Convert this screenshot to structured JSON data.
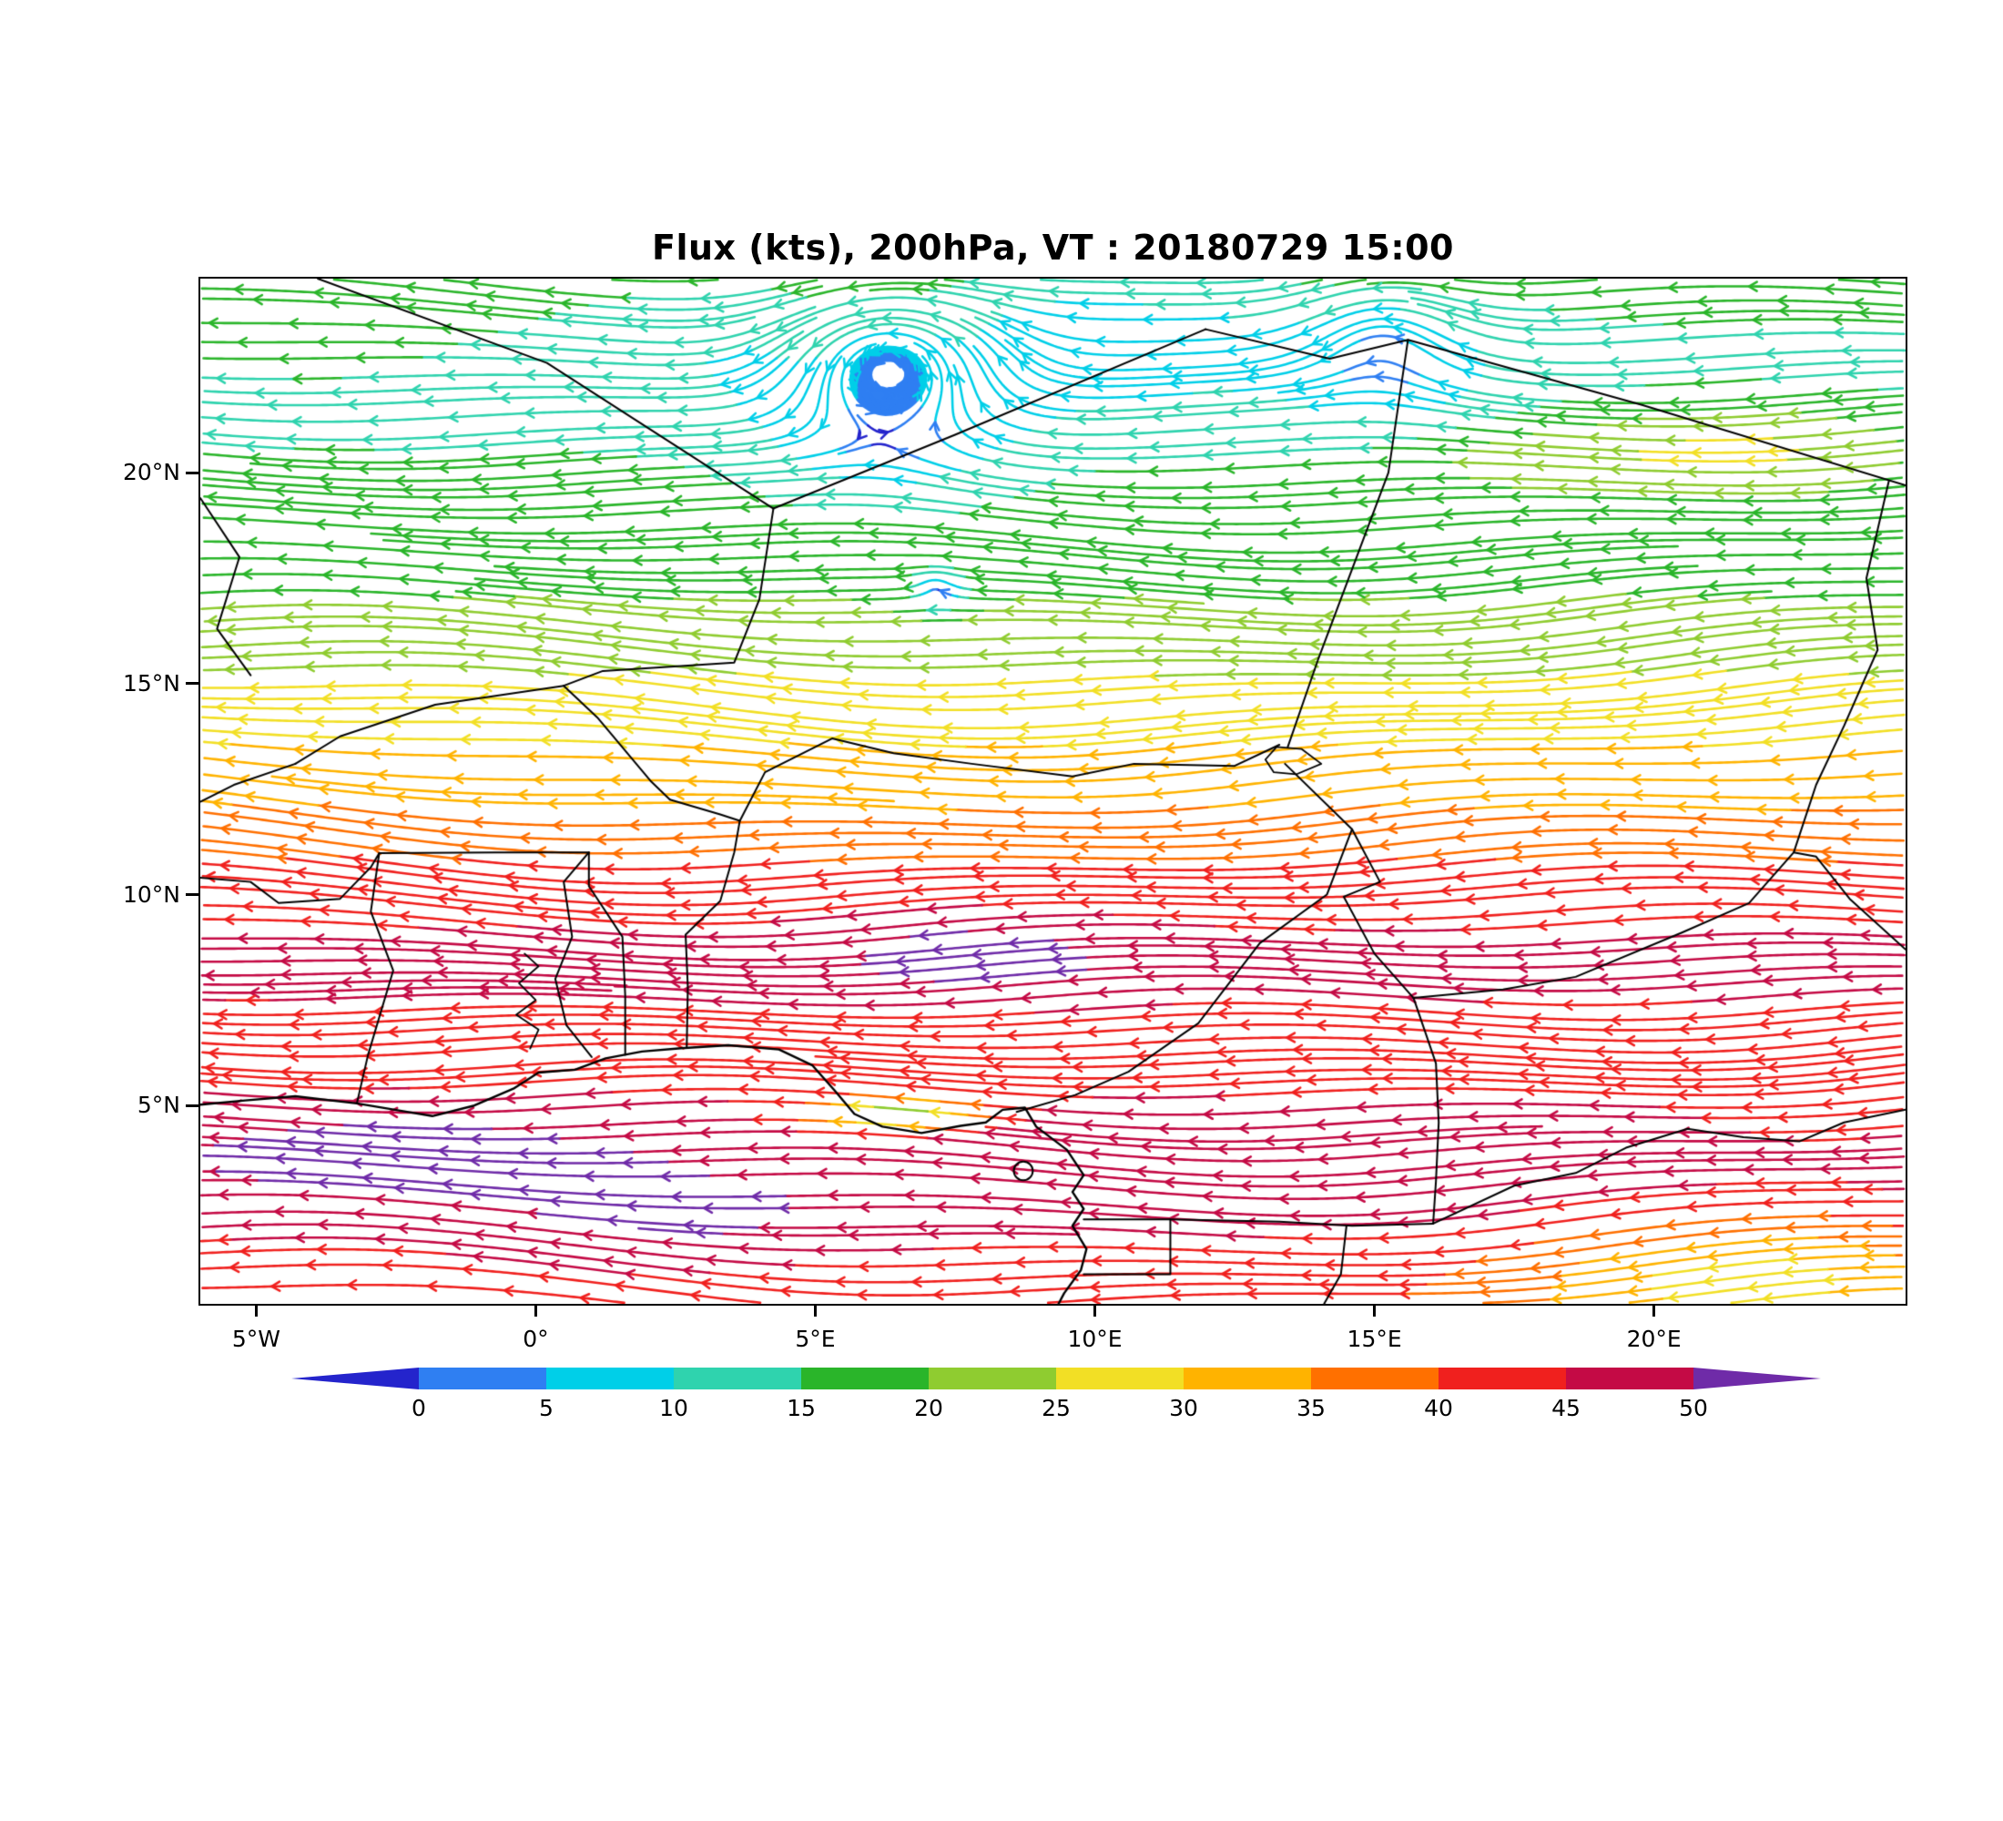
{
  "title": "Flux (kts), 200hPa, VT : 20180729  15:00",
  "axes": {
    "x": {
      "ticks": [
        {
          "lon": -5,
          "label": "5°W"
        },
        {
          "lon": 0,
          "label": "0°"
        },
        {
          "lon": 5,
          "label": "5°E"
        },
        {
          "lon": 10,
          "label": "10°E"
        },
        {
          "lon": 15,
          "label": "15°E"
        },
        {
          "lon": 20,
          "label": "20°E"
        }
      ]
    },
    "y": {
      "ticks": [
        {
          "lat": 20,
          "label": "20°N"
        },
        {
          "lat": 15,
          "label": "15°N"
        },
        {
          "lat": 10,
          "label": "10°N"
        },
        {
          "lat": 5,
          "label": "5°N"
        }
      ]
    }
  },
  "chart_data": {
    "type": "streamline-map",
    "title": "Flux (kts), 200hPa, VT : 20180729  15:00",
    "variable": "Wind flux (kts) at 200 hPa",
    "valid_time": "20180729 15:00",
    "domain": {
      "lon_min": -6.0,
      "lon_max": 24.5,
      "lat_min": 0.3,
      "lat_max": 24.6
    },
    "colorbar": {
      "levels": [
        0,
        5,
        10,
        15,
        20,
        25,
        30,
        35,
        40,
        45,
        50
      ],
      "labels": [
        "0",
        "5",
        "10",
        "15",
        "20",
        "25",
        "30",
        "35",
        "40",
        "45",
        "50"
      ],
      "colors": [
        "#2424cc",
        "#2f7ff2",
        "#00cfe8",
        "#2fd3ae",
        "#2ab52a",
        "#8fcc30",
        "#f2df25",
        "#ffb300",
        "#ff7000",
        "#f0201e",
        "#c40a45",
        "#6f2ba8"
      ],
      "units": "kts"
    },
    "flow": {
      "direction": "easterly (streamlines and arrowheads point westward across the whole domain)",
      "speed_profile_by_latitude": [
        [
          24.6,
          17
        ],
        [
          23.5,
          15
        ],
        [
          22.5,
          13
        ],
        [
          21.5,
          13.5
        ],
        [
          20.5,
          15
        ],
        [
          19.5,
          16
        ],
        [
          18,
          18
        ],
        [
          16.5,
          21
        ],
        [
          15.5,
          24
        ],
        [
          14.5,
          27
        ],
        [
          13.5,
          30
        ],
        [
          12.5,
          33
        ],
        [
          11.5,
          37
        ],
        [
          10.5,
          41
        ],
        [
          9.5,
          44
        ],
        [
          8.8,
          46
        ],
        [
          8.2,
          47
        ],
        [
          7.5,
          45
        ],
        [
          6.8,
          43
        ],
        [
          6,
          43
        ],
        [
          5.2,
          45
        ],
        [
          4.5,
          47
        ],
        [
          3.8,
          49
        ],
        [
          3,
          48
        ],
        [
          2.2,
          46
        ],
        [
          1.2,
          43
        ],
        [
          0.3,
          41
        ]
      ],
      "speed_anomalies": [
        {
          "lon": 8.5,
          "lat": 23.2,
          "sx": 5.5,
          "sy": 1.6,
          "amp": -9
        },
        {
          "lon": -4.0,
          "lat": 23.5,
          "sx": 2.5,
          "sy": 1.5,
          "amp": 4
        },
        {
          "lon": 21.5,
          "lat": 20.6,
          "sx": 3.2,
          "sy": 1.2,
          "amp": 11
        },
        {
          "lon": 17.5,
          "lat": 20.3,
          "sx": 2.2,
          "sy": 0.8,
          "amp": 6
        },
        {
          "lon": 7.8,
          "lat": 8.6,
          "sx": 2.6,
          "sy": 1.0,
          "amp": 6
        },
        {
          "lon": -2.5,
          "lat": 3.9,
          "sx": 3.2,
          "sy": 1.0,
          "amp": 5
        },
        {
          "lon": 2.5,
          "lat": 2.1,
          "sx": 3.5,
          "sy": 1.1,
          "amp": 5
        },
        {
          "lon": 21.5,
          "lat": 1.0,
          "sx": 4.0,
          "sy": 1.6,
          "amp": -15
        },
        {
          "lon": 23.0,
          "lat": 4.5,
          "sx": 2.5,
          "sy": 1.5,
          "amp": -3
        },
        {
          "lon": 6.3,
          "lat": 4.8,
          "sx": 1.5,
          "sy": 0.4,
          "amp": -26
        }
      ],
      "vortices": [
        {
          "lon": 6.3,
          "lat": 22.5,
          "radius": 2.0,
          "strength": 10,
          "damp": 0.8
        },
        {
          "lon": 15.2,
          "lat": 23.6,
          "radius": 1.7,
          "strength": 7,
          "damp": 0.45
        },
        {
          "lon": 7.15,
          "lat": 17.35,
          "radius": 0.5,
          "strength": 18,
          "damp": 0.85
        }
      ]
    },
    "basemap": {
      "coastline": [
        [
          -6,
          5.02
        ],
        [
          -5.2,
          5.12
        ],
        [
          -4.3,
          5.22
        ],
        [
          -3.2,
          5.05
        ],
        [
          -2.3,
          4.85
        ],
        [
          -1.85,
          4.75
        ],
        [
          -1.1,
          5.0
        ],
        [
          -0.4,
          5.4
        ],
        [
          0.05,
          5.78
        ],
        [
          0.7,
          5.85
        ],
        [
          1.25,
          6.12
        ],
        [
          1.9,
          6.28
        ],
        [
          2.6,
          6.36
        ],
        [
          3.45,
          6.43
        ],
        [
          4.35,
          6.33
        ],
        [
          4.95,
          5.95
        ],
        [
          5.35,
          5.35
        ],
        [
          5.7,
          4.8
        ],
        [
          6.2,
          4.5
        ],
        [
          6.9,
          4.35
        ],
        [
          7.6,
          4.52
        ],
        [
          8.05,
          4.6
        ],
        [
          8.35,
          4.9
        ],
        [
          8.75,
          4.95
        ],
        [
          8.95,
          4.5
        ],
        [
          9.5,
          3.95
        ],
        [
          9.8,
          3.35
        ],
        [
          9.6,
          2.95
        ],
        [
          9.8,
          2.55
        ],
        [
          9.6,
          2.15
        ],
        [
          9.85,
          1.6
        ],
        [
          9.75,
          1.1
        ],
        [
          9.45,
          0.55
        ],
        [
          9.35,
          0.3
        ]
      ],
      "borders": [
        [
          [
            -3.9,
            24.6
          ],
          [
            0.2,
            22.6
          ],
          [
            4.25,
            19.15
          ]
        ],
        [
          [
            4.25,
            19.15
          ],
          [
            7.5,
            20.9
          ],
          [
            11.98,
            23.4
          ]
        ],
        [
          [
            11.98,
            23.4
          ],
          [
            14.2,
            22.7
          ],
          [
            15.6,
            23.15
          ],
          [
            19.8,
            21.6
          ],
          [
            24.5,
            19.7
          ]
        ],
        [
          [
            24.2,
            19.8
          ],
          [
            23.8,
            17.5
          ],
          [
            24.0,
            15.8
          ],
          [
            23.4,
            14.0
          ],
          [
            22.9,
            12.6
          ],
          [
            22.5,
            11.0
          ],
          [
            22.9,
            10.9
          ],
          [
            23.5,
            9.9
          ],
          [
            24.5,
            8.7
          ]
        ],
        [
          [
            4.25,
            19.15
          ],
          [
            4.0,
            17.0
          ],
          [
            3.55,
            15.5
          ],
          [
            1.2,
            15.3
          ],
          [
            0.5,
            14.95
          ]
        ],
        [
          [
            0.5,
            14.95
          ],
          [
            1.1,
            14.2
          ],
          [
            2.05,
            12.7
          ],
          [
            2.4,
            12.25
          ]
        ],
        [
          [
            2.4,
            12.25
          ],
          [
            3.3,
            11.9
          ],
          [
            3.65,
            11.75
          ]
        ],
        [
          [
            -4.3,
            13.1
          ],
          [
            -3.5,
            13.75
          ],
          [
            -1.8,
            14.5
          ],
          [
            0.5,
            14.95
          ]
        ],
        [
          [
            -6,
            12.2
          ],
          [
            -5.4,
            12.6
          ],
          [
            -4.3,
            13.1
          ]
        ],
        [
          [
            -6,
            10.4
          ],
          [
            -5.1,
            10.3
          ],
          [
            -4.6,
            9.8
          ],
          [
            -3.5,
            9.9
          ],
          [
            -2.95,
            10.65
          ],
          [
            -2.8,
            10.98
          ]
        ],
        [
          [
            -2.8,
            10.98
          ],
          [
            -0.7,
            11.0
          ],
          [
            0.95,
            11.0
          ]
        ],
        [
          [
            -3.2,
            5.05
          ],
          [
            -3.0,
            6.2
          ],
          [
            -2.55,
            8.2
          ],
          [
            -2.95,
            9.6
          ],
          [
            -2.8,
            10.98
          ]
        ],
        [
          [
            0.95,
            11.0
          ],
          [
            0.5,
            10.3
          ],
          [
            0.65,
            9.0
          ],
          [
            0.35,
            8.0
          ],
          [
            0.55,
            6.9
          ],
          [
            1.0,
            6.15
          ]
        ],
        [
          [
            1.6,
            6.2
          ],
          [
            1.6,
            7.6
          ],
          [
            1.55,
            9.0
          ],
          [
            0.95,
            10.2
          ],
          [
            0.95,
            11.0
          ]
        ],
        [
          [
            2.7,
            6.37
          ],
          [
            2.72,
            7.8
          ],
          [
            2.68,
            9.05
          ],
          [
            3.3,
            9.85
          ],
          [
            3.55,
            11.0
          ],
          [
            3.65,
            11.75
          ]
        ],
        [
          [
            3.65,
            11.75
          ],
          [
            4.1,
            12.9
          ],
          [
            5.3,
            13.7
          ],
          [
            6.4,
            13.35
          ],
          [
            7.8,
            13.1
          ],
          [
            9.6,
            12.8
          ],
          [
            10.7,
            13.1
          ],
          [
            12.5,
            13.05
          ],
          [
            13.3,
            13.55
          ]
        ],
        [
          [
            13.45,
            13.5
          ],
          [
            14.0,
            15.6
          ],
          [
            15.25,
            20.0
          ],
          [
            15.6,
            23.15
          ]
        ],
        [
          [
            13.4,
            13.1
          ],
          [
            14.6,
            11.55
          ],
          [
            14.15,
            10.0
          ],
          [
            12.95,
            8.85
          ],
          [
            11.85,
            6.95
          ],
          [
            10.6,
            5.8
          ],
          [
            9.65,
            5.25
          ],
          [
            8.6,
            4.85
          ]
        ],
        [
          [
            14.6,
            11.55
          ],
          [
            15.1,
            10.3
          ],
          [
            14.45,
            9.95
          ],
          [
            15.0,
            8.6
          ],
          [
            15.7,
            7.55
          ]
        ],
        [
          [
            15.7,
            7.55
          ],
          [
            17.3,
            7.75
          ],
          [
            18.6,
            8.05
          ],
          [
            20.5,
            9.1
          ],
          [
            21.7,
            9.8
          ],
          [
            22.5,
            11.0
          ]
        ],
        [
          [
            15.7,
            7.55
          ],
          [
            16.1,
            6.0
          ],
          [
            16.15,
            4.6
          ],
          [
            16.1,
            3.2
          ],
          [
            16.05,
            2.2
          ]
        ],
        [
          [
            9.8,
            2.3
          ],
          [
            11.35,
            2.3
          ],
          [
            13.3,
            2.25
          ],
          [
            14.6,
            2.15
          ],
          [
            16.05,
            2.2
          ]
        ],
        [
          [
            9.8,
            1.0
          ],
          [
            11.35,
            1.0
          ],
          [
            11.35,
            2.3
          ]
        ],
        [
          [
            14.5,
            2.15
          ],
          [
            14.4,
            1.0
          ],
          [
            14.1,
            0.3
          ]
        ],
        [
          [
            16.05,
            2.2
          ],
          [
            17.5,
            3.1
          ],
          [
            18.6,
            3.4
          ],
          [
            19.5,
            4.0
          ],
          [
            20.6,
            4.45
          ],
          [
            21.6,
            4.25
          ],
          [
            22.6,
            4.15
          ],
          [
            23.4,
            4.6
          ],
          [
            24.5,
            4.9
          ]
        ],
        [
          [
            -6,
            19.4
          ],
          [
            -5.3,
            18.0
          ],
          [
            -5.7,
            16.3
          ],
          [
            -5.1,
            15.2
          ]
        ]
      ],
      "lakes": [
        [
          [
            -0.1,
            6.35
          ],
          [
            0.05,
            6.8
          ],
          [
            -0.35,
            7.15
          ],
          [
            0.0,
            7.5
          ],
          [
            -0.3,
            7.9
          ],
          [
            0.05,
            8.3
          ],
          [
            -0.2,
            8.6
          ]
        ],
        [
          [
            13.05,
            13.2
          ],
          [
            13.25,
            13.5
          ],
          [
            13.7,
            13.45
          ],
          [
            14.05,
            13.1
          ],
          [
            13.6,
            12.85
          ],
          [
            13.2,
            12.9
          ],
          [
            13.05,
            13.2
          ]
        ]
      ],
      "islands": [
        {
          "lon": 8.72,
          "lat": 3.45,
          "rx": 0.17,
          "ry": 0.22
        }
      ]
    }
  }
}
